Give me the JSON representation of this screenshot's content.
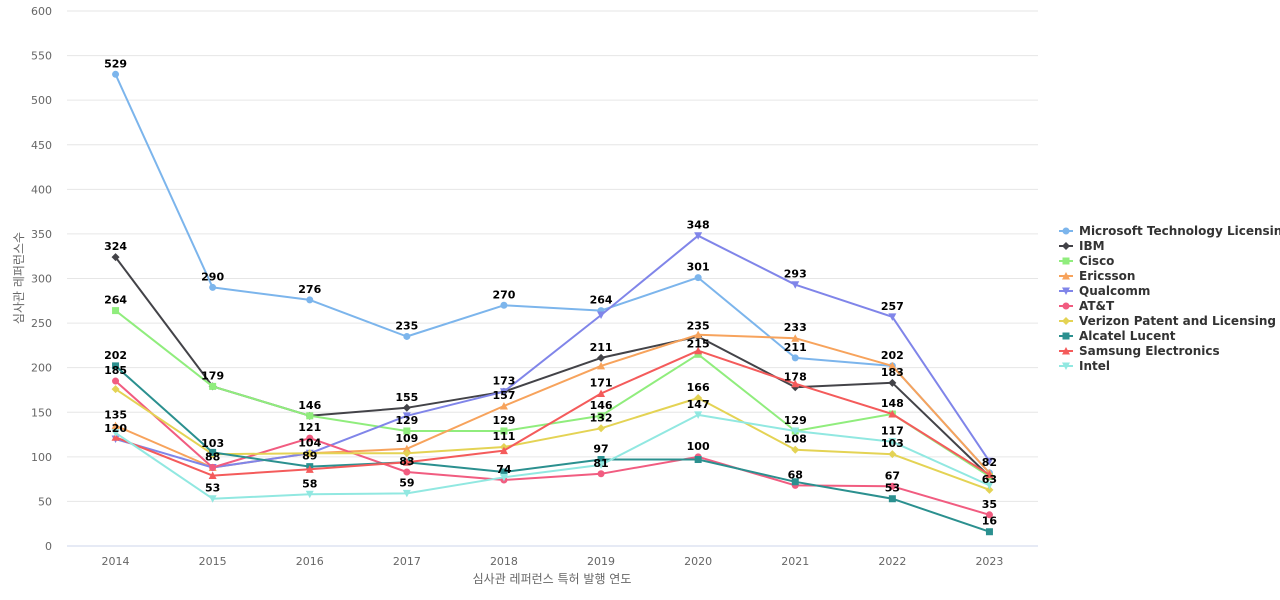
{
  "chart_data": {
    "type": "line",
    "xlabel": "심사관 레퍼런스 특허 발행 연도",
    "ylabel": "심사관 레퍼런스수",
    "x": [
      "2014",
      "2015",
      "2016",
      "2017",
      "2018",
      "2019",
      "2020",
      "2021",
      "2022",
      "2023"
    ],
    "ylim": [
      0,
      600
    ],
    "yticks": [
      0,
      50,
      100,
      150,
      200,
      250,
      300,
      350,
      400,
      450,
      500,
      550,
      600
    ],
    "grid": true,
    "legend_position": "right",
    "series": [
      {
        "name": "Microsoft Technology Licensing",
        "color": "#7cb5ec",
        "marker": "circle",
        "values": [
          529,
          290,
          276,
          235,
          270,
          264,
          301,
          211,
          202,
          82
        ]
      },
      {
        "name": "IBM",
        "color": "#434348",
        "marker": "diamond",
        "values": [
          324,
          179,
          146,
          155,
          173,
          211,
          235,
          178,
          183,
          78
        ]
      },
      {
        "name": "Cisco",
        "color": "#90ed7d",
        "marker": "square",
        "values": [
          264,
          179,
          146,
          129,
          129,
          146,
          215,
          129,
          148,
          78
        ]
      },
      {
        "name": "Ericsson",
        "color": "#f7a35c",
        "marker": "triangle",
        "values": [
          135,
          88,
          104,
          109,
          157,
          202,
          237,
          233,
          202,
          82
        ]
      },
      {
        "name": "Qualcomm",
        "color": "#8085e9",
        "marker": "triangle-down",
        "values": [
          120,
          88,
          104,
          146,
          173,
          259,
          348,
          293,
          257,
          95
        ]
      },
      {
        "name": "AT&T",
        "color": "#f15c80",
        "marker": "circle",
        "values": [
          185,
          88,
          121,
          83,
          74,
          81,
          100,
          68,
          67,
          35
        ]
      },
      {
        "name": "Verizon Patent and Licensing",
        "color": "#e4d354",
        "marker": "diamond",
        "values": [
          176,
          103,
          104,
          104,
          111,
          132,
          166,
          108,
          103,
          63
        ]
      },
      {
        "name": "Alcatel Lucent",
        "color": "#2b908f",
        "marker": "square",
        "values": [
          202,
          105,
          89,
          94,
          83,
          97,
          97,
          72,
          53,
          16
        ]
      },
      {
        "name": "Samsung Electronics",
        "color": "#f45b5b",
        "marker": "triangle",
        "values": [
          122,
          79,
          86,
          94,
          107,
          171,
          219,
          182,
          148,
          80
        ]
      },
      {
        "name": "Intel",
        "color": "#91e8e1",
        "marker": "triangle-down",
        "values": [
          127,
          53,
          58,
          59,
          77,
          91,
          147,
          129,
          117,
          68
        ]
      }
    ],
    "data_labels": [
      {
        "x": "2014",
        "y": 529,
        "text": "529"
      },
      {
        "x": "2014",
        "y": 324,
        "text": "324"
      },
      {
        "x": "2014",
        "y": 264,
        "text": "264"
      },
      {
        "x": "2014",
        "y": 202,
        "text": "202"
      },
      {
        "x": "2014",
        "y": 185,
        "text": "185"
      },
      {
        "x": "2014",
        "y": 135,
        "text": "135"
      },
      {
        "x": "2014",
        "y": 120,
        "text": "120"
      },
      {
        "x": "2015",
        "y": 290,
        "text": "290"
      },
      {
        "x": "2015",
        "y": 179,
        "text": "179"
      },
      {
        "x": "2015",
        "y": 103,
        "text": "103"
      },
      {
        "x": "2015",
        "y": 88,
        "text": "88"
      },
      {
        "x": "2015",
        "y": 53,
        "text": "53"
      },
      {
        "x": "2016",
        "y": 276,
        "text": "276"
      },
      {
        "x": "2016",
        "y": 146,
        "text": "146"
      },
      {
        "x": "2016",
        "y": 121,
        "text": "121"
      },
      {
        "x": "2016",
        "y": 104,
        "text": "104"
      },
      {
        "x": "2016",
        "y": 89,
        "text": "89"
      },
      {
        "x": "2016",
        "y": 58,
        "text": "58"
      },
      {
        "x": "2017",
        "y": 235,
        "text": "235"
      },
      {
        "x": "2017",
        "y": 155,
        "text": "155"
      },
      {
        "x": "2017",
        "y": 129,
        "text": "129"
      },
      {
        "x": "2017",
        "y": 109,
        "text": "109"
      },
      {
        "x": "2017",
        "y": 83,
        "text": "83"
      },
      {
        "x": "2017",
        "y": 59,
        "text": "59"
      },
      {
        "x": "2018",
        "y": 270,
        "text": "270"
      },
      {
        "x": "2018",
        "y": 173,
        "text": "173"
      },
      {
        "x": "2018",
        "y": 157,
        "text": "157"
      },
      {
        "x": "2018",
        "y": 129,
        "text": "129"
      },
      {
        "x": "2018",
        "y": 111,
        "text": "111"
      },
      {
        "x": "2018",
        "y": 74,
        "text": "74"
      },
      {
        "x": "2019",
        "y": 264,
        "text": "264"
      },
      {
        "x": "2019",
        "y": 211,
        "text": "211"
      },
      {
        "x": "2019",
        "y": 171,
        "text": "171"
      },
      {
        "x": "2019",
        "y": 146,
        "text": "146"
      },
      {
        "x": "2019",
        "y": 132,
        "text": "132"
      },
      {
        "x": "2019",
        "y": 97,
        "text": "97"
      },
      {
        "x": "2019",
        "y": 81,
        "text": "81"
      },
      {
        "x": "2020",
        "y": 348,
        "text": "348"
      },
      {
        "x": "2020",
        "y": 301,
        "text": "301"
      },
      {
        "x": "2020",
        "y": 235,
        "text": "235"
      },
      {
        "x": "2020",
        "y": 215,
        "text": "215"
      },
      {
        "x": "2020",
        "y": 166,
        "text": "166"
      },
      {
        "x": "2020",
        "y": 147,
        "text": "147"
      },
      {
        "x": "2020",
        "y": 100,
        "text": "100"
      },
      {
        "x": "2021",
        "y": 293,
        "text": "293"
      },
      {
        "x": "2021",
        "y": 233,
        "text": "233"
      },
      {
        "x": "2021",
        "y": 211,
        "text": "211"
      },
      {
        "x": "2021",
        "y": 178,
        "text": "178"
      },
      {
        "x": "2021",
        "y": 129,
        "text": "129"
      },
      {
        "x": "2021",
        "y": 108,
        "text": "108"
      },
      {
        "x": "2021",
        "y": 68,
        "text": "68"
      },
      {
        "x": "2022",
        "y": 257,
        "text": "257"
      },
      {
        "x": "2022",
        "y": 202,
        "text": "202"
      },
      {
        "x": "2022",
        "y": 183,
        "text": "183"
      },
      {
        "x": "2022",
        "y": 148,
        "text": "148"
      },
      {
        "x": "2022",
        "y": 117,
        "text": "117"
      },
      {
        "x": "2022",
        "y": 103,
        "text": "103"
      },
      {
        "x": "2022",
        "y": 67,
        "text": "67"
      },
      {
        "x": "2022",
        "y": 53,
        "text": "53"
      },
      {
        "x": "2023",
        "y": 82,
        "text": "82"
      },
      {
        "x": "2023",
        "y": 63,
        "text": "63"
      },
      {
        "x": "2023",
        "y": 35,
        "text": "35"
      },
      {
        "x": "2023",
        "y": 16,
        "text": "16"
      }
    ]
  }
}
